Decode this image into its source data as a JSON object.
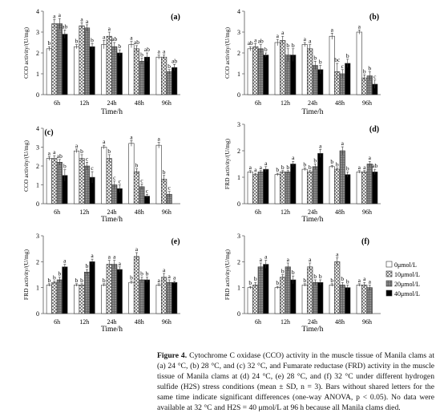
{
  "legend": [
    "0μmol/L",
    "10μmol/L",
    "20μmol/L",
    "40μmol/L"
  ],
  "categories": [
    "6h",
    "12h",
    "24h",
    "48h",
    "96h"
  ],
  "xlabel": "Time/h",
  "caption": {
    "label": "Figure 4.",
    "text": "Cytochrome C oxidase (CCO) activity in the muscle tissue of Manila clams at (a) 24 °C, (b) 28 °C, and (c) 32 °C, and Fumarate reductase (FRD) activity in the muscle tissue of Manila clams at (d) 24 °C, (e) 28 °C, and (f) 32 °C under different hydrogen sulfide (H2S) stress conditions (mean ± SD, n = 3). Bars without shared letters for the same time indicate significant differences (one-way ANOVA, p < 0.05). No data were available at 32 °C and H2S = 40 μmol/L at 96 h because all Manila clams died."
  },
  "chart_data": [
    {
      "panel": "(a)",
      "type": "bar",
      "ylabel": "CCO activity/(U/mg)",
      "ylim": [
        0,
        4
      ],
      "yticks": [
        0,
        1,
        2,
        3,
        4
      ],
      "series": [
        {
          "name": "0μmol/L",
          "values": [
            2.2,
            2.3,
            2.4,
            2.4,
            1.8
          ],
          "errors": [
            0.1,
            0.1,
            0.2,
            0.15,
            0.1
          ],
          "labels": [
            "b",
            "b",
            "a",
            "a",
            "a"
          ]
        },
        {
          "name": "10μmol/L",
          "values": [
            3.4,
            3.3,
            2.8,
            2.2,
            1.8
          ],
          "errors": [
            0.2,
            0.15,
            0.2,
            0.15,
            0.1
          ],
          "labels": [
            "a",
            "a",
            "a",
            "ab",
            "a"
          ]
        },
        {
          "name": "20μmol/L",
          "values": [
            3.4,
            3.2,
            2.3,
            1.6,
            1.1
          ],
          "errors": [
            0.25,
            0.15,
            0.2,
            0.15,
            0.1
          ],
          "labels": [
            "a",
            "a",
            "ab",
            "b",
            "b"
          ]
        },
        {
          "name": "40μmol/L",
          "values": [
            2.9,
            2.3,
            2.0,
            1.8,
            1.3
          ],
          "errors": [
            0.2,
            0.15,
            0.15,
            0.2,
            0.15
          ],
          "labels": [
            "ab",
            "b",
            "b",
            "ab",
            "ab"
          ]
        }
      ]
    },
    {
      "panel": "(b)",
      "type": "bar",
      "ylabel": "CCO activity/(U/mg)",
      "ylim": [
        0,
        4
      ],
      "yticks": [
        0,
        1,
        2,
        3,
        4
      ],
      "series": [
        {
          "name": "0μmol/L",
          "values": [
            2.2,
            2.5,
            2.4,
            2.8,
            3.0
          ],
          "errors": [
            0.1,
            0.15,
            0.1,
            0.15,
            0.1
          ],
          "labels": [
            "ab",
            "a",
            "a",
            "a",
            "a"
          ]
        },
        {
          "name": "10μmol/L",
          "values": [
            2.3,
            2.6,
            2.2,
            1.1,
            0.8
          ],
          "errors": [
            0.15,
            0.2,
            0.2,
            0.4,
            0.15
          ],
          "labels": [
            "a",
            "a",
            "a",
            "bc",
            "b"
          ]
        },
        {
          "name": "20μmol/L",
          "values": [
            2.2,
            1.9,
            1.4,
            1.0,
            0.9
          ],
          "errors": [
            0.2,
            0.3,
            0.2,
            0.2,
            0.2
          ],
          "labels": [
            "ab",
            "b",
            "b",
            "c",
            "b"
          ]
        },
        {
          "name": "40μmol/L",
          "values": [
            1.9,
            1.9,
            1.2,
            1.5,
            0.5
          ],
          "errors": [
            0.1,
            0.3,
            0.2,
            0.2,
            0.2
          ],
          "labels": [
            "b",
            "b",
            "b",
            "b",
            "c"
          ]
        }
      ]
    },
    {
      "panel": "(c)",
      "type": "bar",
      "ylabel": "CCO activity/(U/mg)",
      "ylim": [
        0,
        4
      ],
      "yticks": [
        0,
        1,
        2,
        3,
        4
      ],
      "series": [
        {
          "name": "0μmol/L",
          "values": [
            2.4,
            2.8,
            3.0,
            3.2,
            3.1
          ],
          "errors": [
            0.1,
            0.1,
            0.1,
            0.15,
            0.15
          ],
          "labels": [
            "a",
            "a",
            "a",
            "a",
            "a"
          ]
        },
        {
          "name": "10μmol/L",
          "values": [
            2.4,
            2.4,
            2.4,
            1.7,
            1.3
          ],
          "errors": [
            0.15,
            0.2,
            0.2,
            0.15,
            0.2
          ],
          "labels": [
            "a",
            "b",
            "b",
            "b",
            "b"
          ]
        },
        {
          "name": "20μmol/L",
          "values": [
            2.2,
            2.0,
            1.0,
            0.9,
            0.5
          ],
          "errors": [
            0.15,
            0.2,
            0.2,
            0.15,
            0.15
          ],
          "labels": [
            "ab",
            "c",
            "c",
            "c",
            "c"
          ]
        },
        {
          "name": "40μmol/L",
          "values": [
            1.5,
            1.4,
            0.8,
            0.4,
            null
          ],
          "errors": [
            0.3,
            0.3,
            0.2,
            0.1,
            null
          ],
          "labels": [
            "b",
            "c",
            "c",
            "c",
            ""
          ]
        }
      ]
    },
    {
      "panel": "(d)",
      "type": "bar",
      "ylabel": "FRD activity/(U/mg)",
      "ylim": [
        0,
        3
      ],
      "yticks": [
        0,
        1,
        2,
        3
      ],
      "series": [
        {
          "name": "0μmol/L",
          "values": [
            1.2,
            1.1,
            1.3,
            1.4,
            1.2
          ],
          "errors": [
            0.05,
            0.05,
            0.05,
            0.05,
            0.05
          ],
          "labels": [
            "a",
            "b",
            "b",
            "b",
            "a"
          ]
        },
        {
          "name": "10μmol/L",
          "values": [
            1.1,
            1.2,
            1.2,
            1.3,
            1.2
          ],
          "errors": [
            0.05,
            0.05,
            0.05,
            0.05,
            0.05
          ],
          "labels": [
            "a",
            "b",
            "b",
            "b",
            "a"
          ]
        },
        {
          "name": "20μmol/L",
          "values": [
            1.2,
            1.2,
            1.4,
            2.0,
            1.5
          ],
          "errors": [
            0.05,
            0.05,
            0.1,
            0.15,
            0.1
          ],
          "labels": [
            "a",
            "b",
            "b",
            "a",
            "a"
          ]
        },
        {
          "name": "40μmol/L",
          "values": [
            1.3,
            1.5,
            1.9,
            1.1,
            1.2
          ],
          "errors": [
            0.1,
            0.1,
            0.15,
            0.1,
            0.1
          ],
          "labels": [
            "a",
            "a",
            "a",
            "b",
            "ab"
          ]
        }
      ]
    },
    {
      "panel": "(e)",
      "type": "bar",
      "ylabel": "FRD activity/(U/mg)",
      "ylim": [
        0,
        3
      ],
      "yticks": [
        0,
        1,
        2,
        3
      ],
      "series": [
        {
          "name": "0μmol/L",
          "values": [
            1.1,
            1.1,
            1.1,
            1.2,
            1.1
          ],
          "errors": [
            0.05,
            0.05,
            0.05,
            0.05,
            0.05
          ],
          "labels": [
            "b",
            "b",
            "b",
            "b",
            "a"
          ]
        },
        {
          "name": "10μmol/L",
          "values": [
            1.2,
            1.1,
            1.9,
            2.2,
            1.4
          ],
          "errors": [
            0.05,
            0.05,
            0.15,
            0.15,
            0.15
          ],
          "labels": [
            "b",
            "b",
            "a",
            "a",
            "a"
          ]
        },
        {
          "name": "20μmol/L",
          "values": [
            1.3,
            1.6,
            1.9,
            1.3,
            1.2
          ],
          "errors": [
            0.1,
            0.1,
            0.15,
            0.1,
            0.1
          ],
          "labels": [
            "b",
            "b",
            "a",
            "b",
            "a"
          ]
        },
        {
          "name": "40μmol/L",
          "values": [
            1.8,
            2.0,
            1.7,
            1.3,
            1.2
          ],
          "errors": [
            0.1,
            0.1,
            0.1,
            0.1,
            0.05
          ],
          "labels": [
            "a",
            "a",
            "a",
            "b",
            "a"
          ]
        }
      ]
    },
    {
      "panel": "(f)",
      "type": "bar",
      "ylabel": "FRD activity/(U/mg)",
      "ylim": [
        0,
        3
      ],
      "yticks": [
        0,
        1,
        2,
        3
      ],
      "series": [
        {
          "name": "0μmol/L",
          "values": [
            1.0,
            1.0,
            1.1,
            1.1,
            1.1
          ],
          "errors": [
            0.05,
            0.05,
            0.05,
            0.05,
            0.05
          ],
          "labels": [
            "b",
            "b",
            "b",
            "b",
            "a"
          ]
        },
        {
          "name": "10μmol/L",
          "values": [
            1.1,
            1.4,
            1.8,
            2.0,
            1.1
          ],
          "errors": [
            0.1,
            0.1,
            0.15,
            0.15,
            0.1
          ],
          "labels": [
            "b",
            "b",
            "a",
            "a",
            "a"
          ]
        },
        {
          "name": "20μmol/L",
          "values": [
            1.8,
            1.8,
            1.2,
            1.1,
            1.0
          ],
          "errors": [
            0.15,
            0.15,
            0.1,
            0.1,
            0.1
          ],
          "labels": [
            "a",
            "a",
            "b",
            "b",
            "a"
          ]
        },
        {
          "name": "40μmol/L",
          "values": [
            1.9,
            1.3,
            1.2,
            1.0,
            null
          ],
          "errors": [
            0.15,
            0.15,
            0.1,
            0.1,
            null
          ],
          "labels": [
            "a",
            "b",
            "b",
            "b",
            ""
          ]
        }
      ]
    }
  ]
}
